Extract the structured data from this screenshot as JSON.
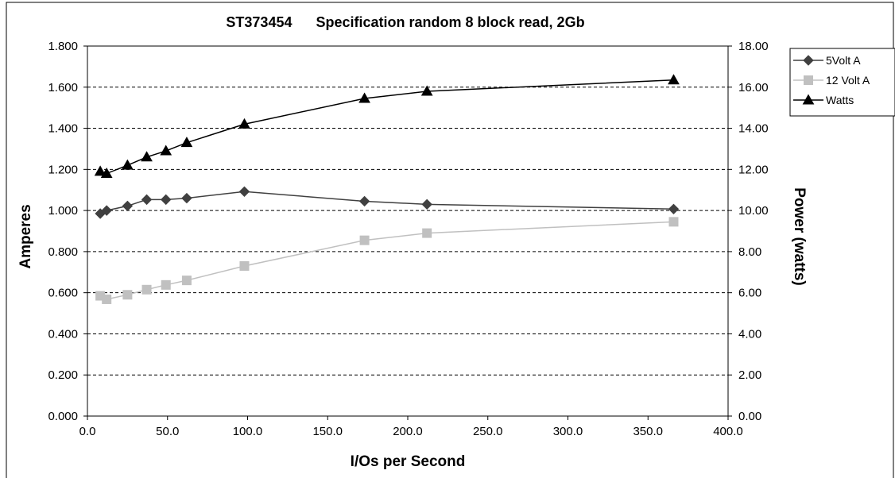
{
  "chart_data": {
    "type": "line",
    "title": "ST373454      Specification random 8 block read, 2Gb",
    "xlabel": "I/Os per Second",
    "ylabel": "Amperes",
    "y2label": "Power (watts)",
    "xlim": [
      0,
      400
    ],
    "ylim": [
      0,
      1.8
    ],
    "y2lim": [
      0,
      18
    ],
    "x_ticks": [
      "0.0",
      "50.0",
      "100.0",
      "150.0",
      "200.0",
      "250.0",
      "300.0",
      "350.0",
      "400.0"
    ],
    "y_ticks": [
      "0.000",
      "0.200",
      "0.400",
      "0.600",
      "0.800",
      "1.000",
      "1.200",
      "1.400",
      "1.600",
      "1.800"
    ],
    "y2_ticks": [
      "0.00",
      "2.00",
      "4.00",
      "6.00",
      "8.00",
      "10.00",
      "12.00",
      "14.00",
      "16.00",
      "18.00"
    ],
    "grid": "horizontal dashed",
    "legend_position": "right",
    "x": [
      8,
      12,
      25,
      37,
      49,
      62,
      98,
      173,
      212,
      366
    ],
    "series": [
      {
        "name": "5Volt A",
        "axis": "left",
        "marker": "diamond",
        "color": "#404040",
        "values": [
          0.985,
          1.0,
          1.022,
          1.053,
          1.053,
          1.06,
          1.092,
          1.045,
          1.03,
          1.007
        ]
      },
      {
        "name": "12 Volt A",
        "axis": "left",
        "marker": "square",
        "color": "#c0c0c0",
        "values": [
          0.585,
          0.568,
          0.59,
          0.615,
          0.638,
          0.66,
          0.73,
          0.855,
          0.89,
          0.945
        ]
      },
      {
        "name": "Watts",
        "axis": "right",
        "marker": "triangle",
        "color": "#000000",
        "values": [
          11.9,
          11.8,
          12.2,
          12.6,
          12.9,
          13.3,
          14.2,
          15.45,
          15.8,
          16.35
        ]
      }
    ]
  }
}
